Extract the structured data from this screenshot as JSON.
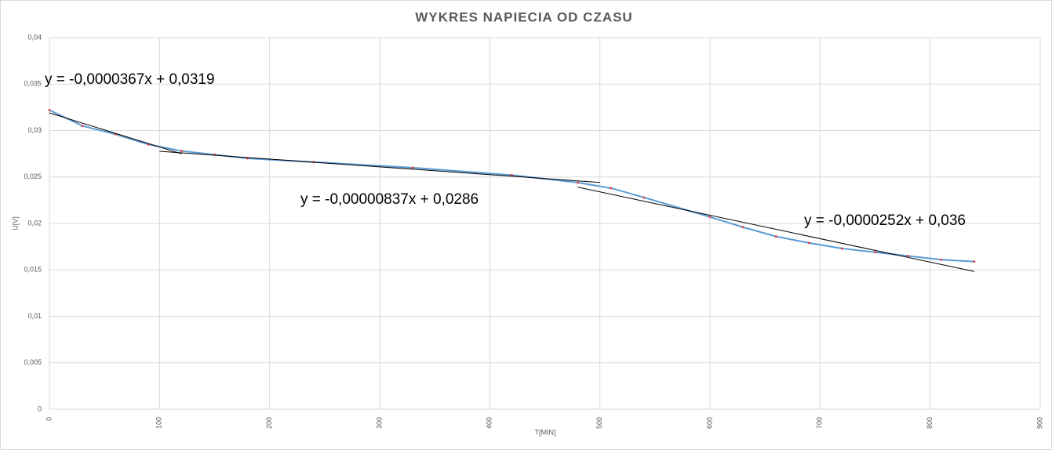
{
  "chart_data": {
    "type": "line",
    "title": "WYKRES NAPIECIA OD CZASU",
    "x_label": "T[MIN]",
    "y_label": "U[V]",
    "x": [
      0,
      30,
      60,
      90,
      120,
      150,
      180,
      240,
      330,
      420,
      480,
      510,
      540,
      600,
      630,
      660,
      690,
      720,
      750,
      780,
      810,
      840
    ],
    "series": [
      {
        "color": "#5b9bd5",
        "marker_color": "#e0474c",
        "values": [
          0.0322,
          0.0305,
          0.0296,
          0.0285,
          0.0278,
          0.0274,
          0.027,
          0.0266,
          0.026,
          0.0252,
          0.0244,
          0.0238,
          0.0228,
          0.0207,
          0.0196,
          0.0186,
          0.0179,
          0.0173,
          0.0169,
          0.0165,
          0.0161,
          0.0159
        ]
      }
    ],
    "trendlines": [
      {
        "label": "y = -0,0000367x + 0,0319",
        "slope": -3.67e-05,
        "intercept": 0.0319,
        "xrange": [
          0,
          120
        ],
        "color": "#000000"
      },
      {
        "label": "y = -0,00000837x + 0,0286",
        "slope": -8.37e-06,
        "intercept": 0.0286,
        "xrange": [
          100,
          500
        ],
        "color": "#000000"
      },
      {
        "label": "y = -0,0000252x + 0,036",
        "slope": -2.52e-05,
        "intercept": 0.036,
        "xrange": [
          480,
          840
        ],
        "color": "#000000"
      }
    ],
    "xlim": [
      0,
      900
    ],
    "xticks": [
      0,
      100,
      200,
      300,
      400,
      500,
      600,
      700,
      800,
      900
    ],
    "ylim": [
      0,
      0.04
    ],
    "yticks": [
      0,
      {
        "value": 0.005,
        "label": "0,005"
      },
      {
        "value": 0.01,
        "label": "0,01"
      },
      {
        "value": 0.015,
        "label": "0,015"
      },
      {
        "value": 0.02,
        "label": "0,02"
      },
      {
        "value": 0.025,
        "label": "0,025"
      },
      {
        "value": 0.03,
        "label": "0,03"
      },
      {
        "value": 0.035,
        "label": "0,035"
      },
      {
        "value": 0.04,
        "label": "0,04"
      }
    ],
    "grid": true
  }
}
